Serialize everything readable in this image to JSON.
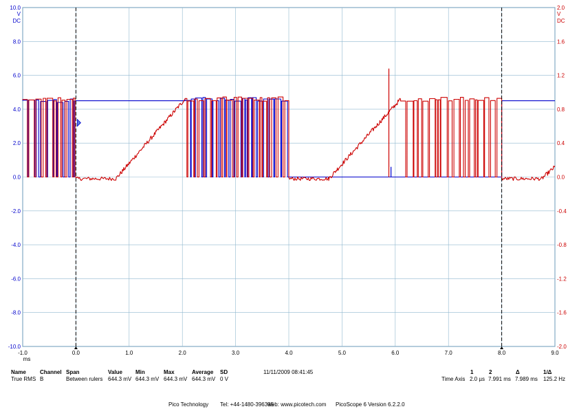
{
  "chart_data": {
    "type": "line",
    "xlim": [
      -1.0,
      9.0
    ],
    "x_ticks": [
      "-1.0",
      "0.0",
      "1.0",
      "2.0",
      "3.0",
      "4.0",
      "5.0",
      "6.0",
      "7.0",
      "8.0",
      "9.0"
    ],
    "x_unit": "ms",
    "y_left": {
      "lim": [
        -10,
        10
      ],
      "ticks": [
        "10.0",
        "8.0",
        "6.0",
        "4.0",
        "2.0",
        "0.0",
        "-2.0",
        "-4.0",
        "-6.0",
        "-8.0",
        "-10.0"
      ],
      "unit": "V",
      "unit2": "DC",
      "color": "#0000cc"
    },
    "y_right": {
      "lim": [
        -2,
        2
      ],
      "ticks": [
        "2.0",
        "1.6",
        "1.2",
        "0.8",
        "0.4",
        "0.0",
        "-0.4",
        "-0.8",
        "-1.2",
        "-1.6",
        "-2.0"
      ],
      "unit": "V",
      "unit2": "DC",
      "color": "#cc0000"
    },
    "grid": true,
    "rulers": [
      0.0,
      8.0
    ],
    "series": [
      {
        "color": "#0000cc",
        "segments": [
          {
            "kind": "digital",
            "x": [
              -1.0,
              0.0
            ],
            "lo": 0.0,
            "hi": 4.5
          },
          {
            "kind": "level",
            "x": [
              0.0,
              2.05
            ],
            "level": 4.5
          },
          {
            "kind": "digital",
            "x": [
              2.05,
              4.0
            ],
            "lo": 0.0,
            "hi": 4.6
          },
          {
            "kind": "level",
            "x": [
              4.0,
              8.0
            ],
            "level": 0.0
          },
          {
            "kind": "level",
            "x": [
              8.0,
              9.0
            ],
            "level": 4.5
          }
        ]
      },
      {
        "color": "#cc0000",
        "segments": [
          {
            "kind": "digital",
            "x": [
              -1.0,
              0.0
            ],
            "lo": 0.0,
            "hi": 4.6
          },
          {
            "kind": "noise",
            "x": [
              0.0,
              0.75
            ],
            "level": -0.1
          },
          {
            "kind": "ramp",
            "x": [
              0.75,
              2.05
            ],
            "from": -0.1,
            "to": 4.6
          },
          {
            "kind": "digital",
            "x": [
              2.05,
              4.0
            ],
            "lo": 0.0,
            "hi": 4.6
          },
          {
            "kind": "noise",
            "x": [
              4.0,
              4.75
            ],
            "level": -0.1
          },
          {
            "kind": "ramp",
            "x": [
              4.75,
              6.1
            ],
            "from": -0.1,
            "to": 4.6
          },
          {
            "kind": "digital",
            "x": [
              6.1,
              8.0
            ],
            "lo": 0.0,
            "hi": 4.6
          },
          {
            "kind": "noise",
            "x": [
              8.0,
              8.75
            ],
            "level": -0.1
          },
          {
            "kind": "ramp",
            "x": [
              8.75,
              9.0
            ],
            "from": -0.1,
            "to": 0.6
          }
        ]
      }
    ],
    "spikes": [
      {
        "x": 5.88,
        "y": 6.4,
        "color": "#cc0000"
      },
      {
        "x": 5.92,
        "y": 0.6,
        "color": "#0000cc"
      }
    ],
    "marker": {
      "x": 0.0,
      "y": 3.2,
      "color": "#0000cc"
    }
  },
  "measurements": {
    "headers": {
      "name": "Name",
      "channel": "Channel",
      "span": "Span",
      "value": "Value",
      "min": "Min",
      "max": "Max",
      "average": "Average",
      "sd": "SD"
    },
    "row": {
      "name": "True RMS",
      "channel": "B",
      "span": "Between rulers",
      "value": "644.3 mV",
      "min": "644.3 mV",
      "max": "644.3 mV",
      "average": "644.3 mV",
      "sd": "0 V"
    },
    "timestamp": "11/11/2009 08:41:45"
  },
  "rulers_info": {
    "headers": {
      "r1": "1",
      "r2": "2",
      "delta": "Δ",
      "inv_delta": "1/Δ"
    },
    "label": "Time Axis",
    "r1": "2.0 µs",
    "r2": "7.991 ms",
    "delta": "7.989 ms",
    "inv_delta": "125.2 Hz"
  },
  "footer": {
    "company": "Pico Technology",
    "tel": "Tel: +44-1480-396395",
    "web": "web: www.picotech.com",
    "version": "PicoScope 6  Version 6.2.2.0"
  }
}
